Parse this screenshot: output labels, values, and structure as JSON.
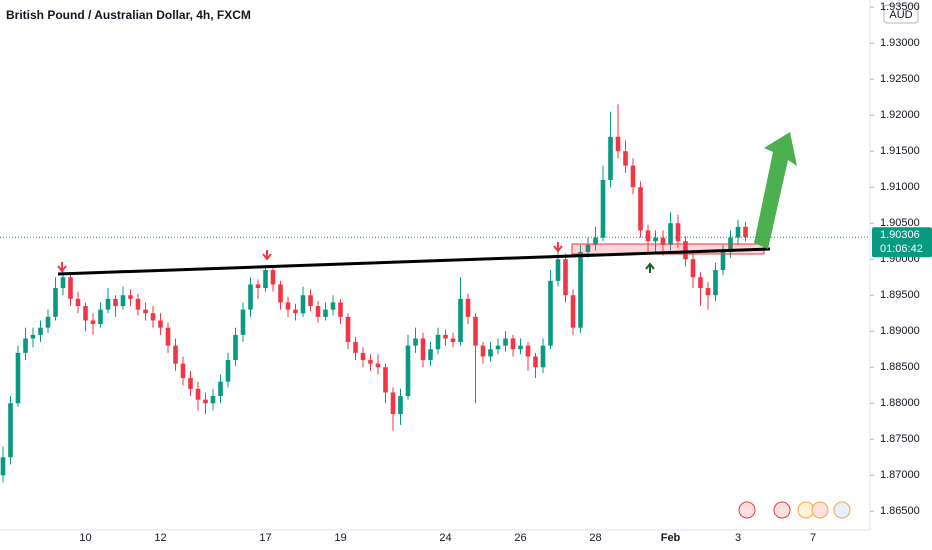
{
  "chart_data": {
    "type": "candlestick",
    "title": "British Pound / Australian Dollar, 4h, FXCM",
    "currency": "AUD",
    "up_color": "#089981",
    "down_color": "#f23645",
    "ylim": [
      1.8624,
      1.936
    ],
    "yticks": [
      {
        "value": 1.865,
        "label": "1.86500"
      },
      {
        "value": 1.87,
        "label": "1.87000"
      },
      {
        "value": 1.875,
        "label": "1.87500"
      },
      {
        "value": 1.88,
        "label": "1.88000"
      },
      {
        "value": 1.885,
        "label": "1.88500"
      },
      {
        "value": 1.89,
        "label": "1.89000"
      },
      {
        "value": 1.895,
        "label": "1.89500"
      },
      {
        "value": 1.9,
        "label": "1.90000"
      },
      {
        "value": 1.905,
        "label": "1.90500"
      },
      {
        "value": 1.91,
        "label": "1.91000"
      },
      {
        "value": 1.915,
        "label": "1.91500"
      },
      {
        "value": 1.92,
        "label": "1.92000"
      },
      {
        "value": 1.925,
        "label": "1.92500"
      },
      {
        "value": 1.93,
        "label": "1.93000"
      },
      {
        "value": 1.935,
        "label": "1.93500"
      }
    ],
    "last_price": 1.90306,
    "countdown": "01:06:42",
    "categories": [
      null,
      null,
      null,
      null,
      null,
      null,
      null,
      null,
      null,
      null,
      null,
      "10",
      null,
      null,
      null,
      null,
      null,
      null,
      null,
      null,
      null,
      "12",
      null,
      null,
      null,
      null,
      null,
      null,
      null,
      null,
      null,
      null,
      null,
      null,
      null,
      "17",
      null,
      null,
      null,
      null,
      null,
      null,
      null,
      null,
      null,
      "19",
      null,
      null,
      null,
      null,
      null,
      null,
      null,
      null,
      null,
      null,
      null,
      null,
      null,
      "24",
      null,
      null,
      null,
      null,
      null,
      null,
      null,
      null,
      null,
      "26",
      null,
      null,
      null,
      null,
      null,
      null,
      null,
      null,
      null,
      "28",
      null,
      null,
      null,
      null,
      null,
      null,
      null,
      null,
      null,
      "Feb",
      null,
      null,
      null,
      null,
      null,
      null,
      null,
      null,
      "3",
      null,
      null,
      null,
      null,
      null,
      null,
      null,
      null,
      null,
      "7",
      null,
      null,
      null,
      null,
      null,
      null
    ],
    "ohlc": [
      [
        1.87,
        1.874,
        1.869,
        1.8725
      ],
      [
        1.8725,
        1.881,
        1.8715,
        1.88
      ],
      [
        1.88,
        1.888,
        1.8795,
        1.887
      ],
      [
        1.887,
        1.8905,
        1.886,
        1.889
      ],
      [
        1.889,
        1.8905,
        1.8878,
        1.8895
      ],
      [
        1.8895,
        1.8915,
        1.8885,
        1.8905
      ],
      [
        1.8905,
        1.893,
        1.8898,
        1.892
      ],
      [
        1.892,
        1.8975,
        1.8915,
        1.896
      ],
      [
        1.896,
        1.8985,
        1.895,
        1.8975
      ],
      [
        1.8975,
        1.898,
        1.8935,
        1.8945
      ],
      [
        1.8945,
        1.8955,
        1.8925,
        1.8935
      ],
      [
        1.8935,
        1.894,
        1.89,
        1.8915
      ],
      [
        1.8915,
        1.8925,
        1.8895,
        1.891
      ],
      [
        1.891,
        1.894,
        1.8905,
        1.893
      ],
      [
        1.893,
        1.896,
        1.8925,
        1.8945
      ],
      [
        1.8945,
        1.895,
        1.892,
        1.8935
      ],
      [
        1.8935,
        1.8962,
        1.893,
        1.895
      ],
      [
        1.895,
        1.8958,
        1.8935,
        1.8945
      ],
      [
        1.8945,
        1.8952,
        1.8922,
        1.893
      ],
      [
        1.893,
        1.894,
        1.8915,
        1.8925
      ],
      [
        1.8925,
        1.8935,
        1.8905,
        1.8915
      ],
      [
        1.8915,
        1.8925,
        1.8895,
        1.8905
      ],
      [
        1.8905,
        1.8912,
        1.887,
        1.888
      ],
      [
        1.888,
        1.889,
        1.8845,
        1.8855
      ],
      [
        1.8855,
        1.8865,
        1.8825,
        1.8835
      ],
      [
        1.8835,
        1.8845,
        1.881,
        1.882
      ],
      [
        1.882,
        1.883,
        1.879,
        1.8805
      ],
      [
        1.8805,
        1.8815,
        1.8785,
        1.88
      ],
      [
        1.88,
        1.882,
        1.879,
        1.881
      ],
      [
        1.881,
        1.884,
        1.88,
        1.883
      ],
      [
        1.883,
        1.887,
        1.8822,
        1.886
      ],
      [
        1.886,
        1.8905,
        1.8852,
        1.8895
      ],
      [
        1.8895,
        1.894,
        1.8885,
        1.893
      ],
      [
        1.893,
        1.8975,
        1.892,
        1.8965
      ],
      [
        1.8965,
        1.8972,
        1.8945,
        1.896
      ],
      [
        1.896,
        1.8992,
        1.8955,
        1.8985
      ],
      [
        1.8985,
        1.899,
        1.8955,
        1.8965
      ],
      [
        1.8965,
        1.897,
        1.893,
        1.894
      ],
      [
        1.894,
        1.8948,
        1.892,
        1.893
      ],
      [
        1.893,
        1.8938,
        1.8915,
        1.8925
      ],
      [
        1.8925,
        1.8962,
        1.892,
        1.895
      ],
      [
        1.895,
        1.8958,
        1.8928,
        1.8935
      ],
      [
        1.8935,
        1.8942,
        1.8912,
        1.892
      ],
      [
        1.892,
        1.894,
        1.8915,
        1.893
      ],
      [
        1.893,
        1.895,
        1.8922,
        1.894
      ],
      [
        1.894,
        1.8945,
        1.891,
        1.892
      ],
      [
        1.892,
        1.8925,
        1.8875,
        1.8885
      ],
      [
        1.8885,
        1.8892,
        1.886,
        1.887
      ],
      [
        1.887,
        1.8878,
        1.885,
        1.886
      ],
      [
        1.886,
        1.8868,
        1.8845,
        1.8855
      ],
      [
        1.8855,
        1.8868,
        1.884,
        1.885
      ],
      [
        1.885,
        1.8855,
        1.88,
        1.8815
      ],
      [
        1.8815,
        1.8822,
        1.8762,
        1.8785
      ],
      [
        1.8785,
        1.882,
        1.877,
        1.881
      ],
      [
        1.881,
        1.8895,
        1.8805,
        1.888
      ],
      [
        1.888,
        1.8905,
        1.887,
        1.889
      ],
      [
        1.889,
        1.8898,
        1.885,
        1.886
      ],
      [
        1.886,
        1.8885,
        1.8852,
        1.8875
      ],
      [
        1.8875,
        1.8905,
        1.8868,
        1.8895
      ],
      [
        1.8895,
        1.8902,
        1.888,
        1.889
      ],
      [
        1.889,
        1.8898,
        1.8878,
        1.8885
      ],
      [
        1.8885,
        1.8975,
        1.888,
        1.8945
      ],
      [
        1.8945,
        1.8952,
        1.891,
        1.892
      ],
      [
        1.892,
        1.8925,
        1.88,
        1.888
      ],
      [
        1.888,
        1.8885,
        1.8855,
        1.8865
      ],
      [
        1.8865,
        1.8885,
        1.8858,
        1.8875
      ],
      [
        1.8875,
        1.889,
        1.8868,
        1.888
      ],
      [
        1.888,
        1.89,
        1.8872,
        1.889
      ],
      [
        1.889,
        1.8895,
        1.8865,
        1.8875
      ],
      [
        1.8875,
        1.889,
        1.8868,
        1.888
      ],
      [
        1.888,
        1.8885,
        1.8845,
        1.8865
      ],
      [
        1.8865,
        1.887,
        1.8835,
        1.885
      ],
      [
        1.885,
        1.889,
        1.8842,
        1.888
      ],
      [
        1.888,
        1.8985,
        1.8875,
        1.897
      ],
      [
        1.897,
        1.9012,
        1.8962,
        1.9
      ],
      [
        1.9,
        1.9008,
        1.894,
        1.895
      ],
      [
        1.895,
        1.8958,
        1.8895,
        1.8905
      ],
      [
        1.8905,
        1.902,
        1.8898,
        1.901
      ],
      [
        1.901,
        1.903,
        1.9002,
        1.902
      ],
      [
        1.902,
        1.9045,
        1.9012,
        1.903
      ],
      [
        1.903,
        1.913,
        1.9025,
        1.911
      ],
      [
        1.911,
        1.9205,
        1.91,
        1.917
      ],
      [
        1.917,
        1.9215,
        1.914,
        1.915
      ],
      [
        1.915,
        1.9165,
        1.912,
        1.913
      ],
      [
        1.913,
        1.914,
        1.909,
        1.91
      ],
      [
        1.91,
        1.9108,
        1.903,
        1.904
      ],
      [
        1.904,
        1.9048,
        1.901,
        1.9025
      ],
      [
        1.9025,
        1.904,
        1.901,
        1.903
      ],
      [
        1.903,
        1.904,
        1.9005,
        1.902
      ],
      [
        1.902,
        1.9065,
        1.9012,
        1.905
      ],
      [
        1.905,
        1.9062,
        1.9015,
        1.9025
      ],
      [
        1.9025,
        1.9032,
        1.899,
        1.9
      ],
      [
        1.9,
        1.9008,
        1.896,
        1.8975
      ],
      [
        1.8975,
        1.8982,
        1.8935,
        1.896
      ],
      [
        1.896,
        1.8968,
        1.893,
        1.895
      ],
      [
        1.895,
        1.8995,
        1.8942,
        1.8985
      ],
      [
        1.8985,
        1.902,
        1.8978,
        1.901
      ],
      [
        1.901,
        1.904,
        1.9002,
        1.903
      ],
      [
        1.903,
        1.9055,
        1.902,
        1.9045
      ],
      [
        1.9045,
        1.9052,
        1.9025,
        1.9031
      ],
      null,
      null,
      null,
      null,
      null,
      null,
      null,
      null,
      null,
      null,
      null,
      null,
      null,
      null,
      null
    ]
  }
}
